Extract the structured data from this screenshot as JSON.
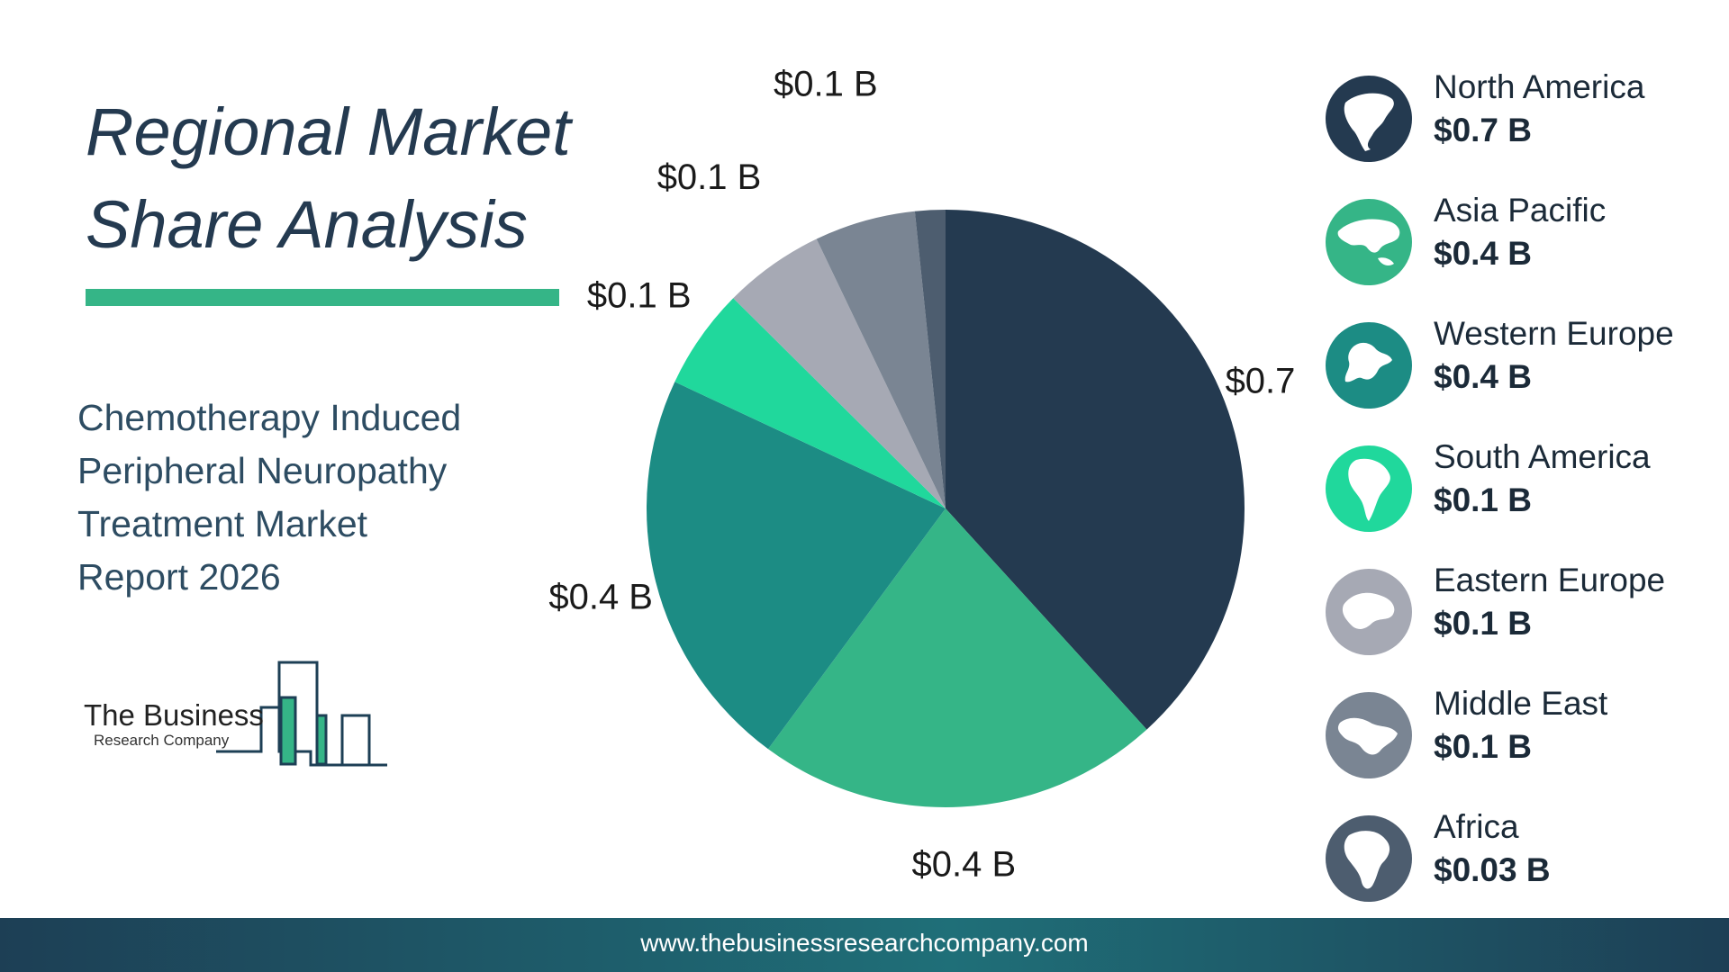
{
  "title_lines": [
    "Regional Market",
    "Share Analysis"
  ],
  "subtitle_lines": [
    "Chemotherapy Induced",
    "Peripheral Neuropathy",
    "Treatment Market",
    "Report 2026"
  ],
  "logo": {
    "name": "The Business",
    "sub": "Research Company"
  },
  "footer_url": "www.thebusinessresearchcompany.com",
  "colors": {
    "accent": "#35b587",
    "title": "#243a50"
  },
  "chart_data": {
    "type": "pie",
    "unit": "$ B",
    "slices": [
      {
        "name": "North America",
        "value": 0.7,
        "label": "$0.7 B",
        "legend_value": "$0.7 B",
        "color": "#243a50",
        "icon": "north-america-map-icon"
      },
      {
        "name": "Asia Pacific",
        "value": 0.4,
        "label": "$0.4 B",
        "legend_value": "$0.4 B",
        "color": "#35b587",
        "icon": "asia-pacific-map-icon"
      },
      {
        "name": "Western Europe",
        "value": 0.4,
        "label": "$0.4 B",
        "legend_value": "$0.4 B",
        "color": "#1c8c84",
        "icon": "western-europe-map-icon"
      },
      {
        "name": "South America",
        "value": 0.1,
        "label": "$0.1 B",
        "legend_value": "$0.1 B",
        "color": "#20d89c",
        "icon": "south-america-map-icon"
      },
      {
        "name": "Eastern Europe",
        "value": 0.1,
        "label": "$0.1 B",
        "legend_value": "$0.1 B",
        "color": "#a6a9b4",
        "icon": "eastern-europe-map-icon"
      },
      {
        "name": "Middle East",
        "value": 0.1,
        "label": "$0.1 B",
        "legend_value": "$0.1 B",
        "color": "#7a8593",
        "icon": "middle-east-map-icon"
      },
      {
        "name": "Africa",
        "value": 0.03,
        "label": "$0.03 B",
        "legend_value": "$0.03 B",
        "color": "#4d5d6f",
        "icon": "africa-map-icon"
      }
    ]
  }
}
